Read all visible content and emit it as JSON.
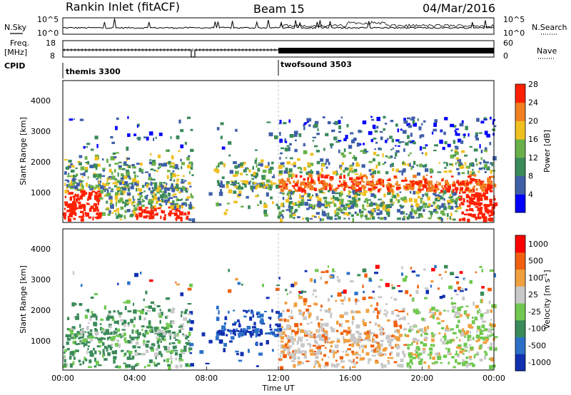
{
  "header": {
    "title": "Rankin Inlet (fitACF)",
    "beam": "Beam 15",
    "date": "04/Mar/2016"
  },
  "side_labels": {
    "nsky": "N.Sky",
    "nsearch": "N.Search",
    "freq": "Freq.",
    "freq_unit": "[MHz]",
    "nave": "Nave",
    "cpid": "CPID"
  },
  "chart_data": [
    {
      "type": "line",
      "name": "noise-panel",
      "left_axis": {
        "ticks": [
          "10^5",
          "10^0"
        ]
      },
      "right_axis": {
        "ticks": [
          "10^5",
          "10^0"
        ]
      },
      "series": [
        {
          "name": "N.Sky",
          "style": "solid"
        },
        {
          "name": "N.Search",
          "style": "dotted"
        }
      ]
    },
    {
      "type": "line",
      "name": "frequency-panel",
      "left_axis": {
        "ticks": [
          "18",
          "8"
        ]
      },
      "right_axis": {
        "ticks": [
          "60",
          "0"
        ]
      },
      "series": [
        {
          "name": "Freq.",
          "style": "solid"
        },
        {
          "name": "Nave",
          "style": "dotted"
        }
      ]
    },
    {
      "type": "table",
      "name": "cpid-panel",
      "segments": [
        {
          "label": "themis 3300",
          "start_hour": 0,
          "end_hour": 12
        },
        {
          "label": "twofsound 3503",
          "start_hour": 12,
          "end_hour": 24
        }
      ]
    },
    {
      "type": "heatmap",
      "name": "power-panel",
      "ylabel": "Slant Range [km]",
      "xrange": [
        0,
        24
      ],
      "ylim": [
        180,
        4600
      ],
      "yticks": [
        "1000",
        "2000",
        "3000",
        "4000"
      ],
      "colorbar": {
        "label": "Power [dB]",
        "ticks": [
          "4",
          "8",
          "12",
          "16",
          "20",
          "24",
          "28"
        ],
        "colors": [
          "#0000ff",
          "#3f5fa8",
          "#3a8a5a",
          "#6ab04a",
          "#f0c020",
          "#f08020",
          "#ff2000"
        ]
      }
    },
    {
      "type": "heatmap",
      "name": "velocity-panel",
      "ylabel": "Slant Range [km]",
      "xrange": [
        0,
        24
      ],
      "ylim": [
        180,
        4600
      ],
      "yticks": [
        "1000",
        "2000",
        "3000",
        "4000"
      ],
      "colorbar": {
        "label": "Velocity [m s",
        "label_sup": "-1",
        "label_end": "]",
        "ticks": [
          "1000",
          "500",
          "100",
          "25",
          "-25",
          "-100",
          "-500",
          "-1000"
        ],
        "colors": [
          "#1030b0",
          "#2c70c8",
          "#3a8a5a",
          "#70c850",
          "#c8c8c8",
          "#f0a040",
          "#f06010",
          "#ff0000"
        ]
      }
    }
  ],
  "time_axis": {
    "ticks": [
      "00:00",
      "04:00",
      "08:00",
      "12:00",
      "16:00",
      "20:00",
      "00:00"
    ],
    "xlabel": "Time UT"
  }
}
